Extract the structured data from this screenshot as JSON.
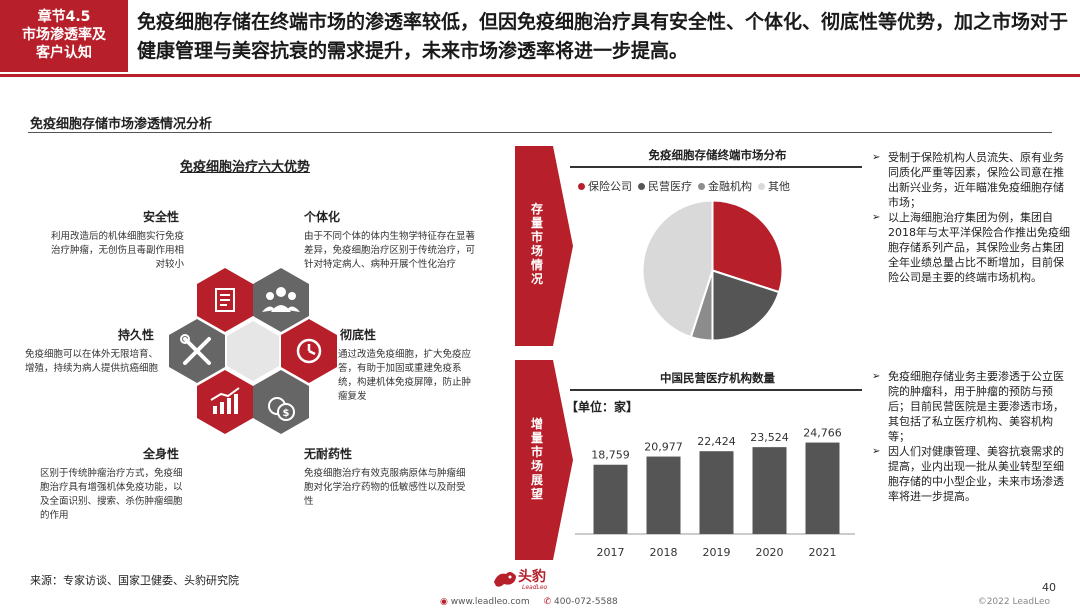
{
  "header": {
    "chapter_line1": "章节4.5",
    "chapter_line2": "市场渗透率及",
    "chapter_line3": "客户认知",
    "headline": "免疫细胞存储在终端市场的渗透率较低，但因免疫细胞治疗具有安全性、个体化、彻底性等优势，加之市场对于健康管理与美容抗衰的需求提升，未来市场渗透率将进一步提高。"
  },
  "section_title": "免疫细胞存储市场渗透情况分析",
  "left_panel": {
    "title": "免疫细胞治疗六大优势",
    "advantages": [
      {
        "title": "安全性",
        "text": "利用改造后的机体细胞实行免疫治疗肿瘤，无创伤且毒副作用相对较小"
      },
      {
        "title": "个体化",
        "text": "由于不同个体的体内生物学特征存在显著差异，免疫细胞治疗区别于传统治疗，可针对特定病人、病种开展个性化治疗"
      },
      {
        "title": "持久性",
        "text": "免疫细胞可以在体外无限培育、增殖，持续为病人提供抗癌细胞"
      },
      {
        "title": "彻底性",
        "text": "通过改造免疫细胞，扩大免疫应答，有助于加固或重建免疫系统，构建机体免疫屏障，防止肿瘤复发"
      },
      {
        "title": "全身性",
        "text": "区别于传统肿瘤治疗方式，免疫细胞治疗具有增强机体免疫功能，以及全面识别、搜索、杀伤肿瘤细胞的作用"
      },
      {
        "title": "无耐药性",
        "text": "免疫细胞治疗有效克服病原体与肿瘤细胞对化学治疗药物的低敏感性以及耐受性"
      }
    ]
  },
  "arrows": {
    "top_label": "存量市场情况",
    "bottom_label": "增量市场展望"
  },
  "pie_section": {
    "title": "免疫细胞存储终端市场分布",
    "legend": [
      "保险公司",
      "民营医疗",
      "金融机构",
      "其他"
    ]
  },
  "bar_section": {
    "title": "中国民营医疗机构数量",
    "unit": "【单位：家】"
  },
  "chart_data": [
    {
      "type": "pie",
      "title": "免疫细胞存储终端市场分布",
      "categories": [
        "保险公司",
        "民营医疗",
        "金融机构",
        "其他"
      ],
      "values": [
        30,
        20,
        5,
        45
      ],
      "colors": [
        "#b7202a",
        "#555555",
        "#8c8c8c",
        "#d9d9d9"
      ]
    },
    {
      "type": "bar",
      "title": "中国民营医疗机构数量",
      "categories": [
        "2017",
        "2018",
        "2019",
        "2020",
        "2021"
      ],
      "values": [
        18759,
        20977,
        22424,
        23524,
        24766
      ],
      "value_labels": [
        "18,759",
        "20,977",
        "22,424",
        "23,524",
        "24,766"
      ],
      "ylabel": "【单位：家】",
      "color": "#555555"
    }
  ],
  "bullets_top": [
    "受制于保险机构人员流失、原有业务同质化严重等因素，保险公司意在推出新兴业务，近年瞄准免疫细胞存储市场；",
    "以上海细胞治疗集团为例，集团自2018年与太平洋保险合作推出免疫细胞存储系列产品，其保险业务占集团全年业绩总量占比不断增加，目前保险公司是主要的终端市场机构。"
  ],
  "bullets_bottom": [
    "免疫细胞存储业务主要渗透于公立医院的肿瘤科，用于肿瘤的预防与预后；目前民营医院是主要渗透市场，其包括了私立医疗机构、美容机构等；",
    "因人们对健康管理、美容抗衰需求的提高，业内出现一批从美业转型至细胞存储的中小型企业，未来市场渗透率将进一步提高。"
  ],
  "footer": {
    "source": "来源：专家访谈、国家卫健委、头豹研究院",
    "logo_text": "头豹",
    "logo_sub": "LeadLeo",
    "website": "www.leadleo.com",
    "phone": "400-072-5588",
    "page_number": "40",
    "copyright": "©2022 LeadLeo"
  },
  "colors": {
    "accent": "#b7202a",
    "dark_gray": "#555555"
  }
}
